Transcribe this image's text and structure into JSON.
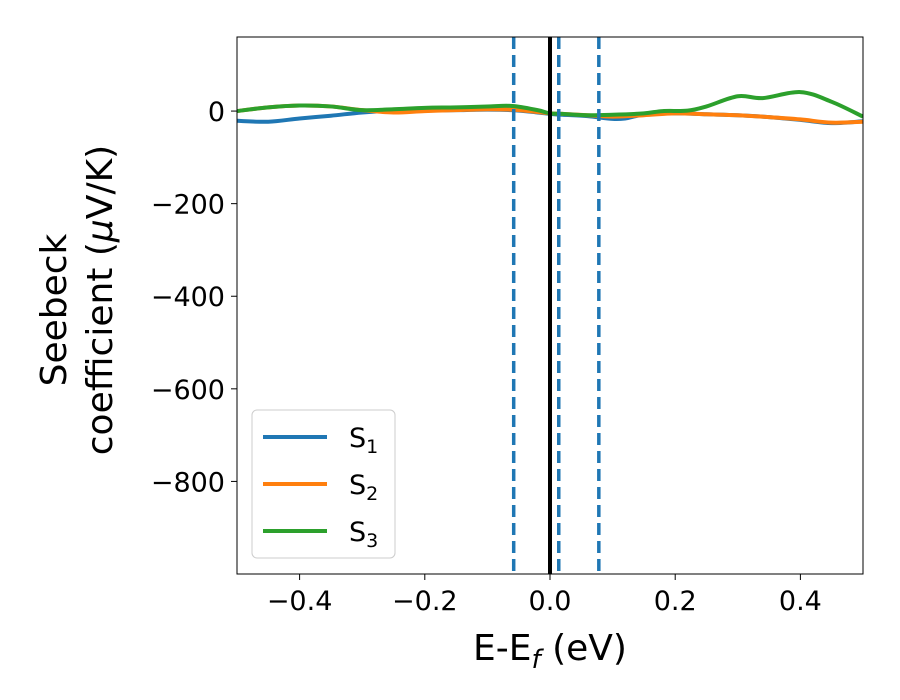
{
  "chart_data": {
    "type": "line",
    "xlabel": {
      "main": "E-E",
      "sub": "f",
      "unit": " (eV)"
    },
    "ylabel": {
      "line1": "Seebeck",
      "line2_prefix": "coefficient  (",
      "mu": "μ",
      "line2_suffix": "V/K)"
    },
    "xlim": [
      -0.5,
      0.5
    ],
    "ylim": [
      -1000,
      160
    ],
    "xticks": [
      -0.4,
      -0.2,
      0.0,
      0.2,
      0.4
    ],
    "xtick_labels": [
      "−0.4",
      "−0.2",
      "0.0",
      "0.2",
      "0.4"
    ],
    "yticks": [
      0,
      -200,
      -400,
      -600,
      -800
    ],
    "ytick_labels": [
      "0",
      "−200",
      "−400",
      "−600",
      "−800"
    ],
    "grid": false,
    "legend_position": "lower-left",
    "reference_line": {
      "x": 0.0,
      "color": "#000000",
      "style": "solid"
    },
    "dashed_lines": [
      {
        "x": -0.058,
        "color": "#1f77b4"
      },
      {
        "x": 0.014,
        "color": "#1f77b4"
      },
      {
        "x": 0.078,
        "color": "#1f77b4"
      }
    ],
    "series": [
      {
        "name": "S",
        "sub": "1",
        "color": "#1f77b4",
        "x": [
          -0.5,
          -0.45,
          -0.4,
          -0.35,
          -0.3,
          -0.25,
          -0.2,
          -0.15,
          -0.1,
          -0.06,
          -0.02,
          0.0,
          0.02,
          0.06,
          0.1,
          0.12,
          0.15,
          0.2,
          0.25,
          0.3,
          0.35,
          0.4,
          0.45,
          0.5
        ],
        "y": [
          -21,
          -23,
          -16,
          -10,
          -3,
          1,
          1,
          2,
          3,
          2,
          -3,
          -6,
          -8,
          -11,
          -17,
          -16,
          -8,
          -5,
          -7,
          -9,
          -13,
          -19,
          -26,
          -22
        ]
      },
      {
        "name": "S",
        "sub": "2",
        "color": "#ff7f0e",
        "x": [
          -0.5,
          -0.45,
          -0.4,
          -0.35,
          -0.3,
          -0.25,
          -0.2,
          -0.15,
          -0.1,
          -0.06,
          -0.02,
          0.0,
          0.02,
          0.06,
          0.1,
          0.15,
          0.2,
          0.25,
          0.3,
          0.35,
          0.4,
          0.45,
          0.5
        ],
        "y": [
          0,
          8,
          12,
          10,
          2,
          -3,
          0,
          2,
          4,
          3,
          -2,
          -5,
          -6,
          -9,
          -12,
          -9,
          -5,
          -7,
          -9,
          -13,
          -18,
          -25,
          -23
        ]
      },
      {
        "name": "S",
        "sub": "3",
        "color": "#2ca02c",
        "x": [
          -0.5,
          -0.45,
          -0.4,
          -0.35,
          -0.3,
          -0.25,
          -0.2,
          -0.15,
          -0.1,
          -0.06,
          -0.02,
          0.0,
          0.02,
          0.06,
          0.1,
          0.15,
          0.18,
          0.22,
          0.25,
          0.3,
          0.34,
          0.4,
          0.45,
          0.5
        ],
        "y": [
          0,
          8,
          12,
          10,
          2,
          4,
          7,
          8,
          10,
          11,
          2,
          -5,
          -6,
          -9,
          -8,
          -5,
          0,
          1,
          10,
          32,
          28,
          41,
          20,
          -12
        ]
      }
    ]
  }
}
